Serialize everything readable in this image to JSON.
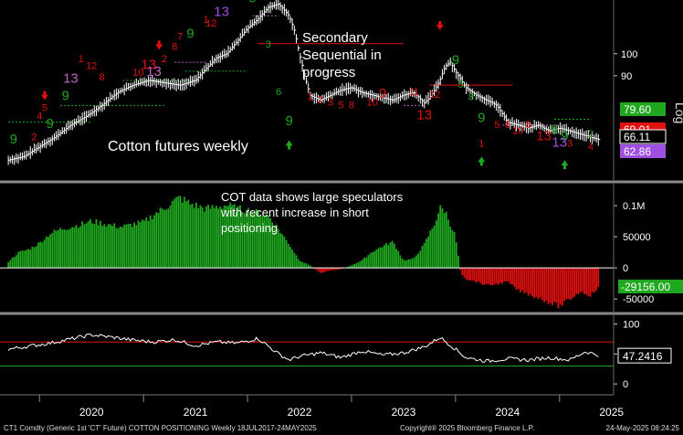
{
  "footer": {
    "left": "CT1 Comdty (Generic 1st 'CT' Future) COTTON POSITIONING  Weekly 18JUL2017-24MAY2025",
    "center": "Copyright® 2025 Bloomberg Finance L.P.",
    "right": "24-May-2025 08:24:25"
  },
  "annotations": {
    "price_title": "Cotton futures weekly",
    "secondary": [
      "Secondary",
      "Sequential in",
      "progress"
    ],
    "cot": [
      "COT data shows large speculators",
      "with recent increase in short",
      "positioning"
    ]
  },
  "colors": {
    "background": "#000000",
    "bull": "#1fa81f",
    "bear": "#e01010",
    "line": "#ffffff",
    "purple": "#a050e0",
    "magenta": "#c060c0"
  },
  "chart_data": [
    {
      "type": "line",
      "title": "Cotton futures weekly",
      "y_ticks": [
        90,
        100
      ],
      "right_axis_label": "Log",
      "ylim_log": [
        55,
        125
      ],
      "x": [
        2019.7,
        2019.85,
        2020.0,
        2020.15,
        2020.3,
        2020.45,
        2020.6,
        2020.75,
        2020.9,
        2021.05,
        2021.2,
        2021.35,
        2021.5,
        2021.6,
        2021.7,
        2021.8,
        2021.9,
        2022.0,
        2022.1,
        2022.2,
        2022.3,
        2022.4,
        2022.45,
        2022.5,
        2022.55,
        2022.6,
        2022.7,
        2022.8,
        2022.9,
        2023.0,
        2023.1,
        2023.2,
        2023.3,
        2023.4,
        2023.5,
        2023.6,
        2023.65,
        2023.7,
        2023.75,
        2023.8,
        2023.85,
        2023.9,
        2023.95,
        2024.0,
        2024.1,
        2024.2,
        2024.3,
        2024.4,
        2024.5,
        2024.6,
        2024.7,
        2024.8,
        2024.9,
        2025.0,
        2025.1,
        2025.2,
        2025.3,
        2025.39
      ],
      "y": [
        60,
        61,
        64,
        67,
        71,
        74,
        78,
        83,
        86,
        88,
        87,
        86,
        88,
        93,
        98,
        100,
        106,
        113,
        118,
        125,
        127,
        120,
        112,
        100,
        90,
        82,
        80,
        82,
        84,
        85,
        83,
        82,
        81,
        80,
        82,
        83,
        81,
        79,
        81,
        84,
        88,
        94,
        96,
        92,
        85,
        82,
        80,
        78,
        72,
        71,
        70,
        71,
        69,
        70,
        69,
        68,
        67,
        66.11
      ],
      "price_labels": [
        {
          "text": "79.60",
          "color": "#1fa81f"
        },
        {
          "text": "69.01",
          "color": "#e01010"
        },
        {
          "text": "66.11",
          "color": "#ffffff"
        },
        {
          "text": "62.86",
          "color": "#a050e0"
        }
      ],
      "td_labels": [
        {
          "x": 2019.75,
          "y": 65,
          "t": "9",
          "c": "#1fa81f"
        },
        {
          "x": 2019.95,
          "y": 66,
          "t": "2",
          "c": "#e01010"
        },
        {
          "x": 2020.1,
          "y": 70,
          "t": "9",
          "c": "#1fa81f"
        },
        {
          "x": 2020.0,
          "y": 73,
          "t": "4",
          "c": "#e01010"
        },
        {
          "x": 2020.05,
          "y": 76,
          "t": "5",
          "c": "#e01010"
        },
        {
          "x": 2020.25,
          "y": 80,
          "t": "9",
          "c": "#1fa81f"
        },
        {
          "x": 2020.3,
          "y": 87,
          "t": "13",
          "c": "#c060c0"
        },
        {
          "x": 2020.4,
          "y": 96,
          "t": "1",
          "c": "#e01010"
        },
        {
          "x": 2020.5,
          "y": 93,
          "t": "12",
          "c": "#e01010"
        },
        {
          "x": 2020.6,
          "y": 88,
          "t": "8",
          "c": "#e01010"
        },
        {
          "x": 2020.95,
          "y": 90,
          "t": "10",
          "c": "#e01010"
        },
        {
          "x": 2021.05,
          "y": 93,
          "t": "13",
          "c": "#e01010"
        },
        {
          "x": 2021.1,
          "y": 90,
          "t": "13",
          "c": "#c060c0"
        },
        {
          "x": 2021.2,
          "y": 96,
          "t": "2",
          "c": "#e01010"
        },
        {
          "x": 2021.3,
          "y": 102,
          "t": "8",
          "c": "#e01010"
        },
        {
          "x": 2021.35,
          "y": 107,
          "t": "7",
          "c": "#e01010"
        },
        {
          "x": 2021.45,
          "y": 108,
          "t": "9",
          "c": "#1fa81f"
        },
        {
          "x": 2021.6,
          "y": 116,
          "t": "1",
          "c": "#e01010"
        },
        {
          "x": 2021.65,
          "y": 114,
          "t": "12",
          "c": "#e01010"
        },
        {
          "x": 2021.75,
          "y": 120,
          "t": "13",
          "c": "#a050e0"
        },
        {
          "x": 2022.05,
          "y": 128,
          "t": "9",
          "c": "#1fa81f"
        },
        {
          "x": 2022.2,
          "y": 103,
          "t": "3",
          "c": "#1fa81f"
        },
        {
          "x": 2022.3,
          "y": 82,
          "t": "6",
          "c": "#1fa81f"
        },
        {
          "x": 2022.4,
          "y": 71,
          "t": "9",
          "c": "#1fa81f"
        },
        {
          "x": 2022.6,
          "y": 80,
          "t": "1",
          "c": "#e01010"
        },
        {
          "x": 2022.7,
          "y": 79,
          "t": "2",
          "c": "#e01010"
        },
        {
          "x": 2022.8,
          "y": 78,
          "t": "3",
          "c": "#e01010"
        },
        {
          "x": 2022.9,
          "y": 77,
          "t": "5",
          "c": "#e01010"
        },
        {
          "x": 2023.0,
          "y": 77,
          "t": "8",
          "c": "#e01010"
        },
        {
          "x": 2023.2,
          "y": 78,
          "t": "10",
          "c": "#e01010"
        },
        {
          "x": 2023.3,
          "y": 81,
          "t": "9",
          "c": "#e01010"
        },
        {
          "x": 2023.6,
          "y": 82,
          "t": "11",
          "c": "#e01010"
        },
        {
          "x": 2023.7,
          "y": 73,
          "t": "13",
          "c": "#e01010"
        },
        {
          "x": 2023.8,
          "y": 81,
          "t": "12",
          "c": "#e01010"
        },
        {
          "x": 2024.0,
          "y": 95,
          "t": "9",
          "c": "#1fa81f"
        },
        {
          "x": 2024.05,
          "y": 85,
          "t": "5",
          "c": "#1fa81f"
        },
        {
          "x": 2024.15,
          "y": 80,
          "t": "8",
          "c": "#1fa81f"
        },
        {
          "x": 2024.25,
          "y": 72,
          "t": "9",
          "c": "#1fa81f"
        },
        {
          "x": 2024.25,
          "y": 64,
          "t": "1",
          "c": "#e01010"
        },
        {
          "x": 2024.4,
          "y": 70,
          "t": "5",
          "c": "#e01010"
        },
        {
          "x": 2024.5,
          "y": 70,
          "t": "6",
          "c": "#e01010"
        },
        {
          "x": 2024.6,
          "y": 68,
          "t": "10",
          "c": "#e01010"
        },
        {
          "x": 2024.7,
          "y": 70,
          "t": "8",
          "c": "#e01010"
        },
        {
          "x": 2024.85,
          "y": 66,
          "t": "13",
          "c": "#e01010"
        },
        {
          "x": 2024.95,
          "y": 68,
          "t": "9",
          "c": "#1fa81f"
        },
        {
          "x": 2025.05,
          "y": 66,
          "t": "9",
          "c": "#1fa81f"
        },
        {
          "x": 2025.0,
          "y": 64,
          "t": "13",
          "c": "#a050e0"
        },
        {
          "x": 2025.1,
          "y": 64,
          "t": "3",
          "c": "#e01010"
        },
        {
          "x": 2025.3,
          "y": 67,
          "t": "2",
          "c": "#1fa81f"
        },
        {
          "x": 2025.3,
          "y": 63,
          "t": "4",
          "c": "#e01010"
        }
      ],
      "arrows": [
        {
          "x": 2020.05,
          "y": 80,
          "dir": "down",
          "c": "#e01010"
        },
        {
          "x": 2021.15,
          "y": 102,
          "dir": "down",
          "c": "#e01010"
        },
        {
          "x": 2023.85,
          "y": 112,
          "dir": "down",
          "c": "#e01010"
        },
        {
          "x": 2022.4,
          "y": 66,
          "dir": "up",
          "c": "#1fa81f"
        },
        {
          "x": 2024.25,
          "y": 61,
          "dir": "up",
          "c": "#1fa81f"
        },
        {
          "x": 2025.05,
          "y": 60,
          "dir": "up",
          "c": "#1fa81f"
        }
      ],
      "levels": [
        {
          "x0": 2019.7,
          "x1": 2020.5,
          "y": 72,
          "c": "#1fa81f",
          "dash": true
        },
        {
          "x0": 2020.2,
          "x1": 2021.2,
          "y": 78,
          "c": "#1fa81f",
          "dash": true
        },
        {
          "x0": 2020.8,
          "x1": 2021.55,
          "y": 88,
          "c": "#1fa81f",
          "dash": true
        },
        {
          "x0": 2021.4,
          "x1": 2022.0,
          "y": 92,
          "c": "#1fa81f",
          "dash": true
        },
        {
          "x0": 2021.3,
          "x1": 2021.6,
          "y": 96,
          "c": "#c060c0",
          "dash": true
        },
        {
          "x0": 2022.05,
          "x1": 2022.3,
          "y": 120,
          "c": "#c060c0",
          "dash": true
        },
        {
          "x0": 2022.1,
          "x1": 2023.5,
          "y": 105,
          "c": "#e01010",
          "dash": false
        },
        {
          "x0": 2023.5,
          "x1": 2023.7,
          "y": 78,
          "c": "#c060c0",
          "dash": true
        },
        {
          "x0": 2023.75,
          "x1": 2024.55,
          "y": 86,
          "c": "#e01010",
          "dash": false
        },
        {
          "x0": 2024.45,
          "x1": 2025.0,
          "y": 71,
          "c": "#c060c0",
          "dash": true
        },
        {
          "x0": 2024.95,
          "x1": 2025.3,
          "y": 73,
          "c": "#1fa81f",
          "dash": true
        }
      ]
    },
    {
      "type": "bar",
      "title": "COT data shows large speculators with recent increase in short positioning",
      "y_ticks": [
        -50000,
        0,
        50000,
        100000
      ],
      "y_tick_labels": [
        "-50000",
        "0",
        "50000",
        "0.1M"
      ],
      "ylim": [
        -60000,
        125000
      ],
      "last_value": "-29156.00",
      "x": [
        2019.7,
        2019.8,
        2019.9,
        2020.0,
        2020.1,
        2020.2,
        2020.3,
        2020.4,
        2020.5,
        2020.6,
        2020.7,
        2020.8,
        2020.9,
        2021.0,
        2021.1,
        2021.2,
        2021.3,
        2021.35,
        2021.45,
        2021.6,
        2021.7,
        2021.8,
        2021.9,
        2022.0,
        2022.1,
        2022.2,
        2022.3,
        2022.4,
        2022.5,
        2022.6,
        2022.7,
        2022.8,
        2022.9,
        2023.0,
        2023.1,
        2023.2,
        2023.3,
        2023.4,
        2023.5,
        2023.6,
        2023.7,
        2023.8,
        2023.85,
        2023.9,
        2024.0,
        2024.05,
        2024.1,
        2024.2,
        2024.3,
        2024.4,
        2024.5,
        2024.6,
        2024.7,
        2024.8,
        2024.9,
        2025.0,
        2025.1,
        2025.2,
        2025.3,
        2025.39
      ],
      "values": [
        10000,
        25000,
        30000,
        40000,
        55000,
        62000,
        66000,
        70000,
        75000,
        72000,
        68000,
        66000,
        70000,
        73000,
        86000,
        96000,
        108000,
        113000,
        103000,
        95000,
        98000,
        101000,
        95000,
        93000,
        88000,
        84000,
        62000,
        38000,
        12000,
        4000,
        -8000,
        -4000,
        -2000,
        4000,
        12000,
        26000,
        35000,
        42000,
        12000,
        15000,
        38000,
        72000,
        96000,
        92000,
        50000,
        -8000,
        -18000,
        -22000,
        -28000,
        -26000,
        -22000,
        -36000,
        -42000,
        -48000,
        -55000,
        -62000,
        -50000,
        -38000,
        -44000,
        -29156
      ]
    },
    {
      "type": "line",
      "title": "",
      "y_ticks": [
        0,
        50,
        100
      ],
      "ylim": [
        -12,
        110
      ],
      "upper_level": 70,
      "lower_level": 30,
      "last_value": "47.2416",
      "x": [
        2019.7,
        2019.9,
        2020.1,
        2020.3,
        2020.5,
        2020.7,
        2020.9,
        2021.1,
        2021.3,
        2021.5,
        2021.7,
        2021.9,
        2022.1,
        2022.3,
        2022.4,
        2022.5,
        2022.7,
        2022.9,
        2023.1,
        2023.3,
        2023.5,
        2023.7,
        2023.8,
        2023.85,
        2023.95,
        2024.1,
        2024.3,
        2024.5,
        2024.7,
        2024.9,
        2025.1,
        2025.25,
        2025.39
      ],
      "values": [
        58,
        63,
        68,
        75,
        82,
        78,
        73,
        70,
        74,
        64,
        70,
        68,
        76,
        50,
        40,
        46,
        52,
        44,
        55,
        48,
        52,
        62,
        72,
        78,
        65,
        44,
        38,
        42,
        40,
        44,
        40,
        54,
        47.24
      ]
    }
  ],
  "x_axis": {
    "labels": [
      "2020",
      "2021",
      "2022",
      "2023",
      "2024",
      "2025"
    ],
    "year_positions": [
      2020,
      2021,
      2022,
      2023,
      2024,
      2025
    ]
  }
}
